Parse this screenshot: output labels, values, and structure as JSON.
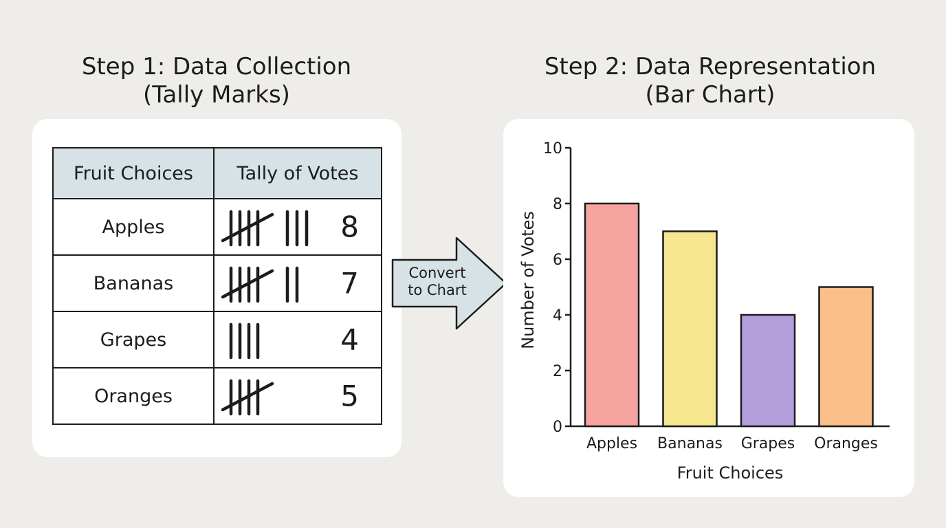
{
  "step1": {
    "title_line1": "Step 1: Data Collection",
    "title_line2": "(Tally Marks)",
    "table": {
      "headers": [
        "Fruit Choices",
        "Tally of Votes"
      ],
      "rows": [
        {
          "fruit": "Apples",
          "count": "8"
        },
        {
          "fruit": "Bananas",
          "count": "7"
        },
        {
          "fruit": "Grapes",
          "count": "4"
        },
        {
          "fruit": "Oranges",
          "count": "5"
        }
      ]
    }
  },
  "arrow": {
    "label_line1": "Convert",
    "label_line2": "to Chart",
    "fill": "#d6e2e5"
  },
  "step2": {
    "title_line1": "Step 2: Data Representation",
    "title_line2": "(Bar Chart)"
  },
  "chart_data": {
    "type": "bar",
    "categories": [
      "Apples",
      "Bananas",
      "Grapes",
      "Oranges"
    ],
    "values": [
      8,
      7,
      4,
      5
    ],
    "colors": [
      "#f7a3a0",
      "#f5e68f",
      "#b39edb",
      "#fbbf8a"
    ],
    "xlabel": "Fruit Choices",
    "ylabel": "Number of Votes",
    "ylim": [
      0,
      10
    ],
    "yticks": [
      0,
      2,
      4,
      6,
      8,
      10
    ],
    "grid": false
  }
}
